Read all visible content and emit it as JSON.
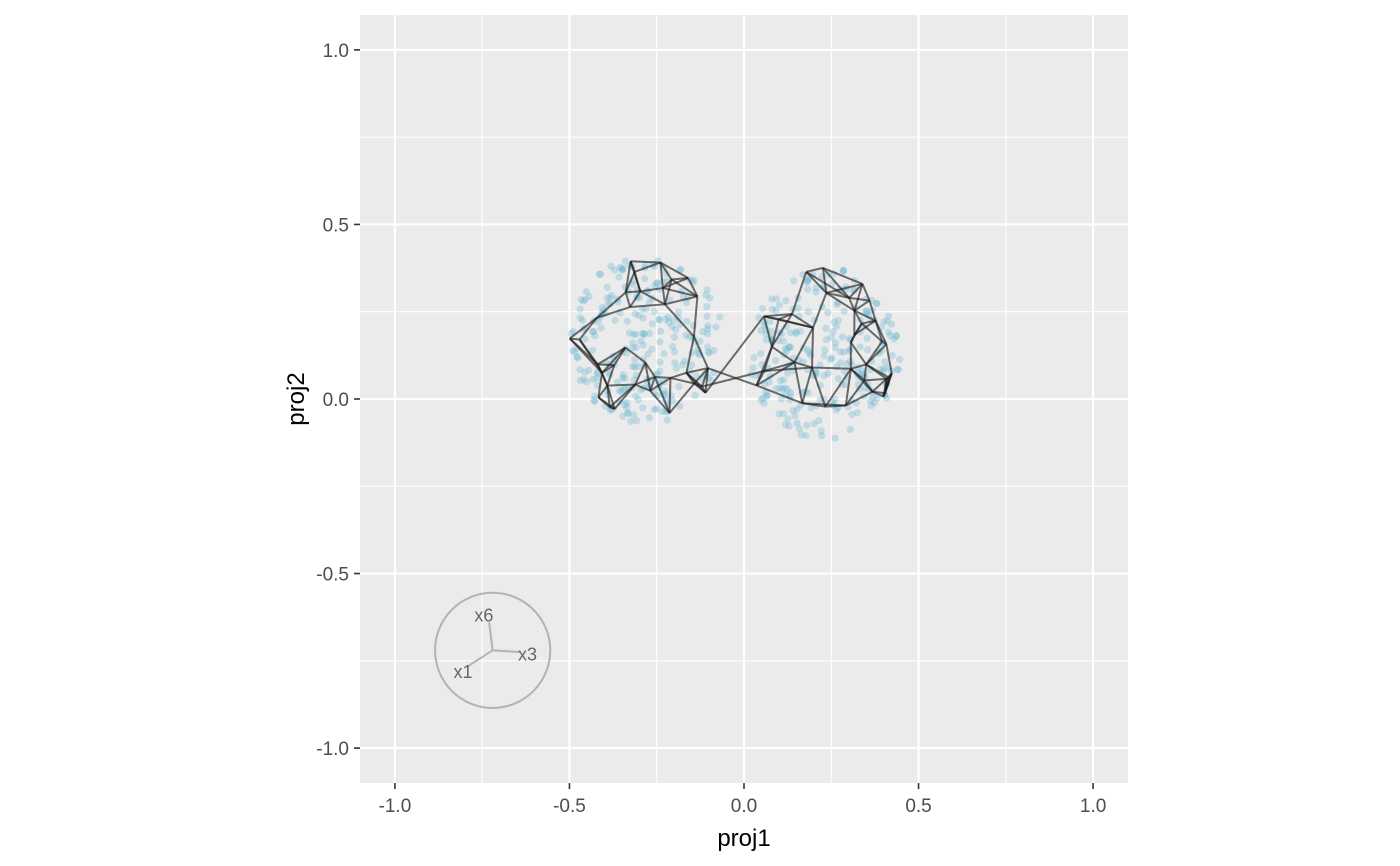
{
  "chart_data": {
    "type": "scatter",
    "title": "",
    "xlabel": "proj1",
    "ylabel": "proj2",
    "xlim": [
      -1.1,
      1.1
    ],
    "ylim": [
      -1.1,
      1.1
    ],
    "x_ticks": [
      -1.0,
      -0.5,
      0.0,
      0.5,
      1.0
    ],
    "y_ticks": [
      -1.0,
      -0.5,
      0.0,
      0.5,
      1.0
    ],
    "x_tick_labels": [
      "-1.0",
      "-0.5",
      "0.0",
      "0.5",
      "1.0"
    ],
    "y_tick_labels": [
      "-1.0",
      "-0.5",
      "0.0",
      "0.5",
      "1.0"
    ],
    "grid": true,
    "legend": "none",
    "colors": {
      "panel": "#ebebeb",
      "grid": "#ffffff",
      "points": "#6fb8d1",
      "edges": "#1a1a1a",
      "axes_guide": "#b3b3b3",
      "axes_guide_text": "#707070"
    },
    "clusters": [
      {
        "cx": -0.28,
        "cy": 0.17,
        "rx": 0.22,
        "ry": 0.24,
        "n": 260
      },
      {
        "cx": 0.23,
        "cy": 0.13,
        "rx": 0.22,
        "ry": 0.25,
        "n": 260
      }
    ],
    "axes_guide": {
      "center": [
        -0.72,
        -0.72
      ],
      "radius": 0.165,
      "axes": [
        {
          "name": "x6",
          "dx": -0.01,
          "dy": 0.08,
          "lx": -0.025,
          "ly": 0.1
        },
        {
          "name": "x3",
          "dx": 0.08,
          "dy": -0.005,
          "lx": 0.1,
          "ly": -0.012
        },
        {
          "name": "x1",
          "dx": -0.07,
          "dy": -0.045,
          "lx": -0.085,
          "ly": -0.062
        }
      ]
    }
  }
}
